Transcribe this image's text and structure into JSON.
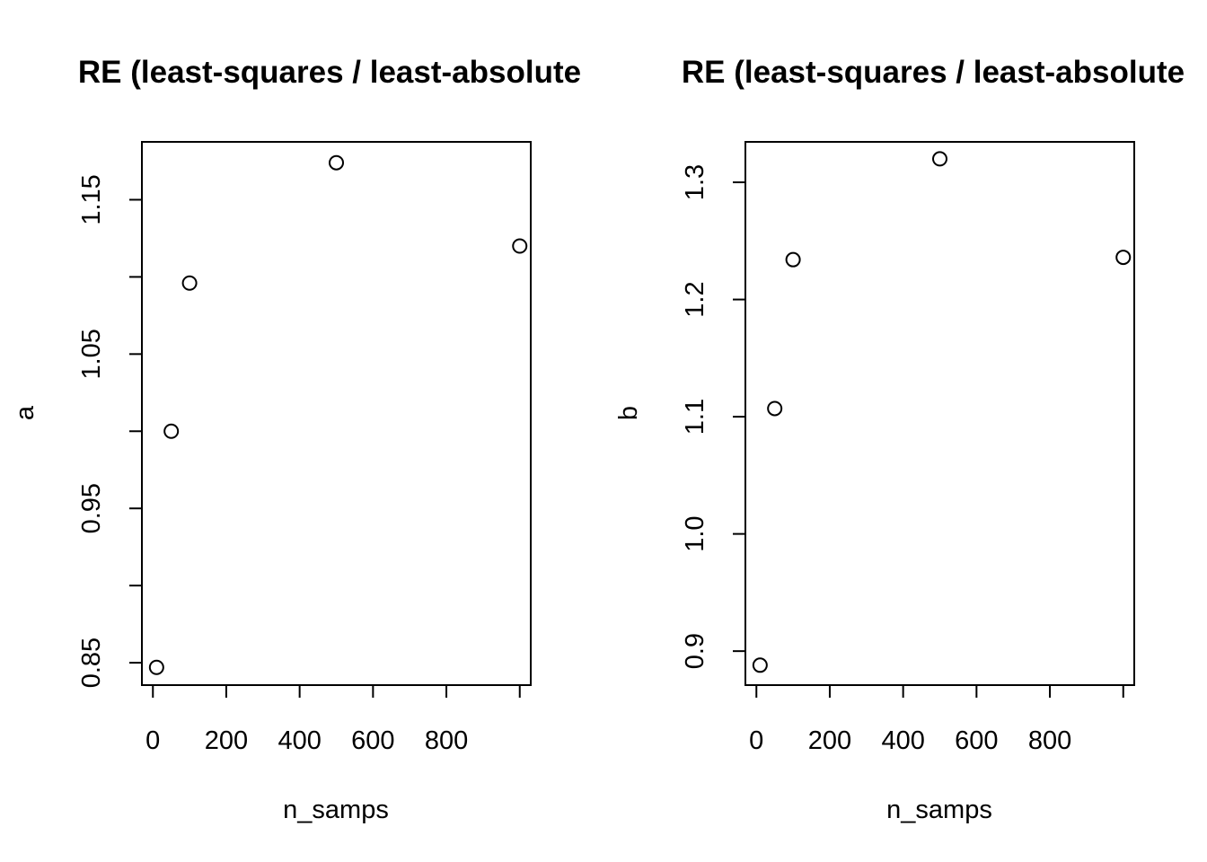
{
  "chart_data": [
    {
      "type": "scatter",
      "title": "RE (least-squares / least-absolute",
      "xlabel": "n_samps",
      "ylabel": "a",
      "x_ticks": [
        0,
        200,
        400,
        600,
        800,
        1000
      ],
      "x_tick_labels": [
        "0",
        "200",
        "400",
        "600",
        "800",
        ""
      ],
      "y_ticks": [
        0.85,
        0.9,
        0.95,
        1.0,
        1.05,
        1.1,
        1.15
      ],
      "y_tick_labels": [
        "0.85",
        "",
        "0.95",
        "",
        "1.05",
        "",
        "1.15"
      ],
      "xlim": [
        -30,
        1030
      ],
      "ylim": [
        0.8355,
        1.1875
      ],
      "grid": false,
      "points": [
        {
          "x": 10,
          "y": 0.847
        },
        {
          "x": 50,
          "y": 1.0
        },
        {
          "x": 100,
          "y": 1.096
        },
        {
          "x": 500,
          "y": 1.174
        },
        {
          "x": 1000,
          "y": 1.12
        }
      ]
    },
    {
      "type": "scatter",
      "title": "RE (least-squares / least-absolute",
      "xlabel": "n_samps",
      "ylabel": "b",
      "x_ticks": [
        0,
        200,
        400,
        600,
        800,
        1000
      ],
      "x_tick_labels": [
        "0",
        "200",
        "400",
        "600",
        "800",
        ""
      ],
      "y_ticks": [
        0.9,
        1.0,
        1.1,
        1.2,
        1.3
      ],
      "y_tick_labels": [
        "0.9",
        "1.0",
        "1.1",
        "1.2",
        "1.3"
      ],
      "xlim": [
        -30,
        1030
      ],
      "ylim": [
        0.871,
        1.3345
      ],
      "grid": false,
      "points": [
        {
          "x": 10,
          "y": 0.888
        },
        {
          "x": 50,
          "y": 1.107
        },
        {
          "x": 100,
          "y": 1.234
        },
        {
          "x": 500,
          "y": 1.32
        },
        {
          "x": 1000,
          "y": 1.236
        }
      ]
    }
  ]
}
